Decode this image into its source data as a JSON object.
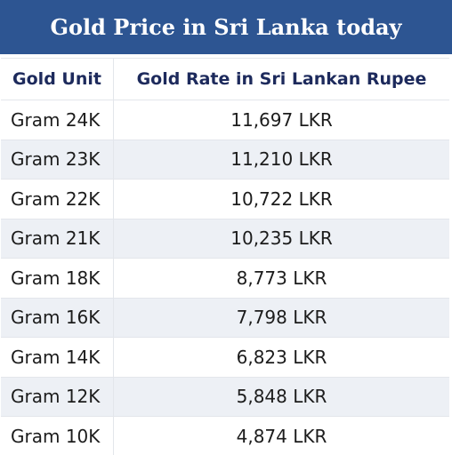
{
  "title": "Gold Price in Sri Lanka today",
  "table": {
    "headers": {
      "unit": "Gold Unit",
      "rate": "Gold Rate in Sri Lankan Rupee"
    },
    "rows": [
      {
        "unit": "Gram 24K",
        "rate": "11,697 LKR"
      },
      {
        "unit": "Gram 23K",
        "rate": "11,210 LKR"
      },
      {
        "unit": "Gram 22K",
        "rate": "10,722 LKR"
      },
      {
        "unit": "Gram 21K",
        "rate": "10,235 LKR"
      },
      {
        "unit": "Gram 18K",
        "rate": "8,773 LKR"
      },
      {
        "unit": "Gram 16K",
        "rate": "7,798 LKR"
      },
      {
        "unit": "Gram 14K",
        "rate": "6,823 LKR"
      },
      {
        "unit": "Gram 12K",
        "rate": "5,848 LKR"
      },
      {
        "unit": "Gram 10K",
        "rate": "4,874 LKR"
      }
    ]
  },
  "colors": {
    "title_bar": "#2d5592",
    "header_text": "#1d2a5c",
    "alt_row": "#edf0f5"
  }
}
